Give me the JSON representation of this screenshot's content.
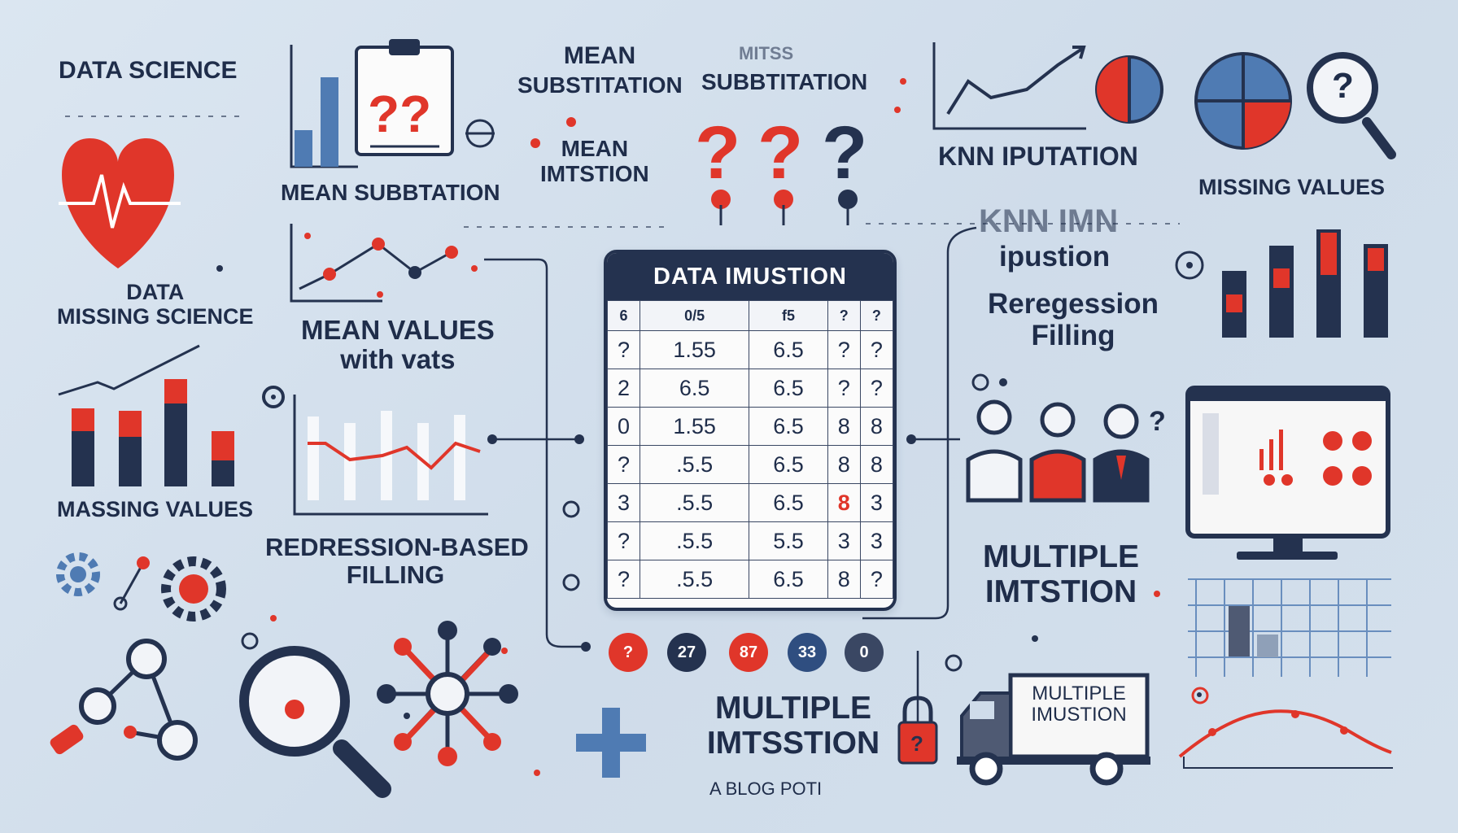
{
  "colors": {
    "background": "#d6e2ee",
    "navy": "#24324f",
    "red": "#e0362a",
    "blue": "#4f7bb3",
    "light": "#f7f7f7"
  },
  "labels": {
    "data_science": "DATA SCIENCE",
    "mean_top": "MEAN",
    "substitution_top_left": "SUBSTITATION",
    "substitution_top_right": "SUBBTITATION",
    "mitss": "MITSS",
    "mean_substitution_bottom": "MEAN SUBBTATION",
    "mean_imputation": "MEAN\nIMTSTION",
    "knn_imputation_top": "KNN IPUTATION",
    "missing_values_top_right": "MISSING VALUES",
    "data_missing_science": "DATA\nMISSING SCIENCE",
    "mean_values_with_vats": "MEAN VALUES\nwith vats",
    "knn_imn": "KNN IMN",
    "ipustion": "ipustion",
    "regression_filling_right": "Reregession\nFilling",
    "massing_values": "MASSING VALUES",
    "redression_based_filling": "REDRESSION-BASED\nFILLING",
    "multiple_imtstion_right": "MULTIPLE\nIMTSTION",
    "multiple_imtstion_bottom": "MULTIPLE\nIMTSSTION",
    "blog_post": "A BLOG POTI",
    "multiple_imustion_truck": "MULTIPLE\nIMUSTION"
  },
  "icons": {
    "clipboard_marks": "??",
    "question_marks": [
      "?",
      "?",
      "?"
    ],
    "magnifier_mark": "?",
    "lock_mark": "?",
    "people_mark": "?"
  },
  "table": {
    "title": "DATA IMUSTION",
    "headers": [
      "6",
      "0/5",
      "f5",
      "?",
      "?"
    ],
    "rows": [
      [
        "?",
        "1.55",
        "6.5",
        "?",
        "?"
      ],
      [
        "2",
        "6.5",
        "6.5",
        "?",
        "?"
      ],
      [
        "0",
        "1.55",
        "6.5",
        "8",
        "8"
      ],
      [
        "?",
        ".5.5",
        "6.5",
        "8",
        "8"
      ],
      [
        "3",
        ".5.5",
        "6.5",
        "8",
        "3"
      ],
      [
        "?",
        ".5.5",
        "5.5",
        "3",
        "3"
      ],
      [
        "?",
        ".5.5",
        "6.5",
        "8",
        "?"
      ]
    ]
  },
  "chips": [
    {
      "text": "?",
      "color": "#e0362a"
    },
    {
      "text": "27",
      "color": "#24324f"
    },
    {
      "text": "87",
      "color": "#e0362a"
    },
    {
      "text": "33",
      "color": "#2f4e80"
    },
    {
      "text": "0",
      "color": "#3a4763"
    }
  ]
}
